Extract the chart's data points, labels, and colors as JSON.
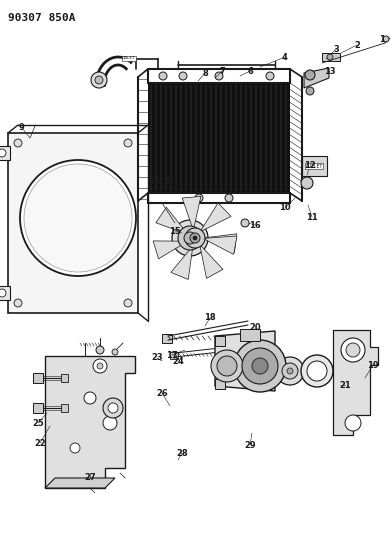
{
  "title": "90307 850A",
  "background_color": "#ffffff",
  "line_color": "#1a1a1a",
  "label_color": "#1a1a1a",
  "fig_width": 3.92,
  "fig_height": 5.33,
  "dpi": 100,
  "lw_main": 1.0,
  "lw_thin": 0.5,
  "lw_med": 0.7,
  "label_fontsize": 6.0
}
